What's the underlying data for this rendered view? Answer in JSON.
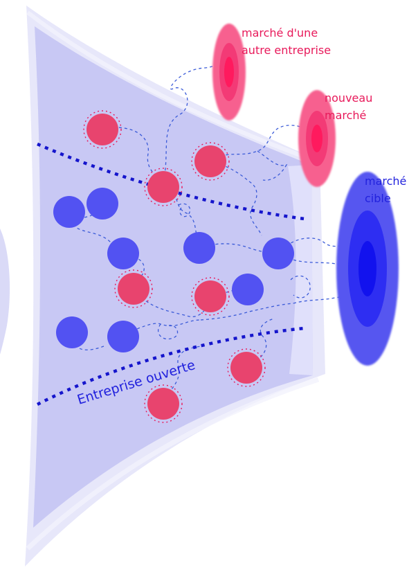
{
  "labels": {
    "other_company_market_line1": "marché d'une",
    "other_company_market_line2": "autre entreprise",
    "new_market_line1": "nouveau",
    "new_market_line2": "marché",
    "target_market_line1": "marché",
    "target_market_line2": "cible",
    "open_enterprise": "Entreprise ouverte"
  },
  "colors": {
    "panel_fill": "#c8c8f4",
    "panel_edge": "#e2e2f8",
    "blue_node": "#5252f2",
    "pink_node": "#e8446e",
    "boundary_dotted": "#1515cc",
    "path_dashed": "#3b5bd8",
    "market_pink_outer": "#f7608f",
    "market_pink_inner": "#ff1a5e",
    "market_blue_outer": "#5656f0",
    "market_blue_inner": "#1212ee"
  }
}
